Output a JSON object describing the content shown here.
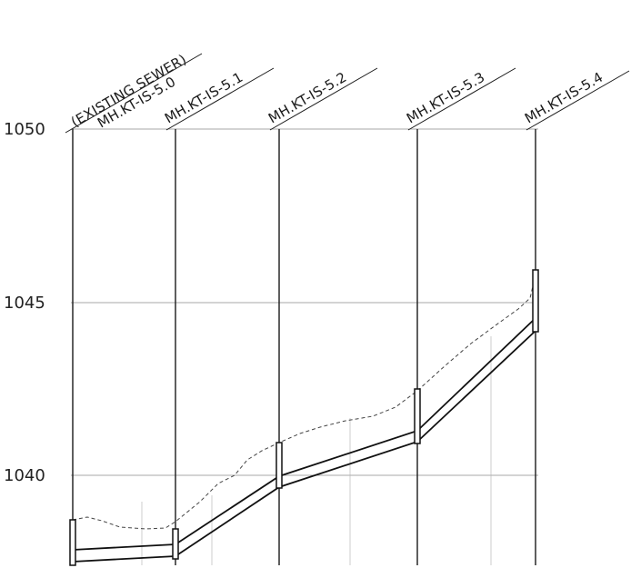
{
  "elevations": [
    {
      "value": 1050,
      "label": "1050"
    },
    {
      "value": 1045,
      "label": "1045"
    },
    {
      "value": 1040,
      "label": "1040"
    }
  ],
  "manholes": [
    {
      "id": "mh-5-0",
      "labels": [
        "(EXISTING SEWER)",
        "MH.KT-IS-5.0"
      ]
    },
    {
      "id": "mh-5-1",
      "labels": [
        "MH.KT-IS-5.1"
      ]
    },
    {
      "id": "mh-5-2",
      "labels": [
        "MH.KT-IS-5.2"
      ]
    },
    {
      "id": "mh-5-3",
      "labels": [
        "MH.KT-IS-5.3"
      ]
    },
    {
      "id": "mh-5-4",
      "labels": [
        "MH.KT-IS-5.4"
      ]
    }
  ]
}
